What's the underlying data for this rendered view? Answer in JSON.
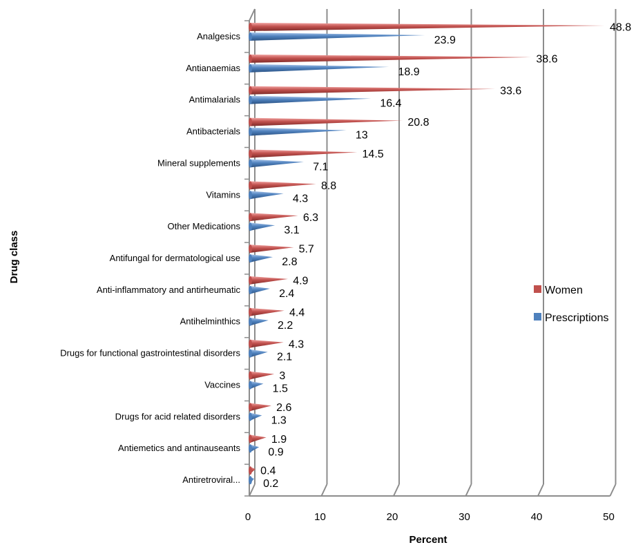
{
  "chart_data": {
    "type": "bar",
    "orientation": "horizontal",
    "style": "3d-cone",
    "categories": [
      "Analgesics",
      "Antianaemias",
      "Antimalarials",
      "Antibacterials",
      "Mineral supplements",
      "Vitamins",
      "Other Medications",
      "Antifungal for dermatological use",
      "Anti-inflammatory and antirheumatic",
      "Antihelminthics",
      "Drugs for functional gastrointestinal disorders",
      "Vaccines",
      "Drugs for acid related disorders",
      "Antiemetics and antinauseants",
      "Antiretroviral..."
    ],
    "series": [
      {
        "name": "Women",
        "color": "#C0504D",
        "values": [
          48.8,
          38.6,
          33.6,
          20.8,
          14.5,
          8.8,
          6.3,
          5.7,
          4.9,
          4.4,
          4.3,
          3,
          2.6,
          1.9,
          0.4
        ]
      },
      {
        "name": "Prescriptions",
        "color": "#4F81BD",
        "values": [
          23.9,
          18.9,
          16.4,
          13,
          7.1,
          4.3,
          3.1,
          2.8,
          2.4,
          2.2,
          2.1,
          1.5,
          1.3,
          0.9,
          0.2
        ]
      }
    ],
    "value_labels": {
      "Women": [
        "48.8",
        "38.6",
        "33.6",
        "20.8",
        "14.5",
        "8.8",
        "6.3",
        "5.7",
        "4.9",
        "4.4",
        "4.3",
        "3",
        "2.6",
        "1.9",
        "0.4"
      ],
      "Prescriptions": [
        "23.9",
        "18.9",
        "16.4",
        "13",
        "7.1",
        "4.3",
        "3.1",
        "2.8",
        "2.4",
        "2.2",
        "2.1",
        "1.5",
        "1.3",
        "0.9",
        "0.2"
      ]
    },
    "xlabel": "Percent",
    "ylabel": "Drug class",
    "xlim": [
      0,
      50
    ],
    "xticks": [
      "0",
      "10",
      "20",
      "30",
      "40",
      "50"
    ],
    "grid": true,
    "legend_position": "right"
  }
}
